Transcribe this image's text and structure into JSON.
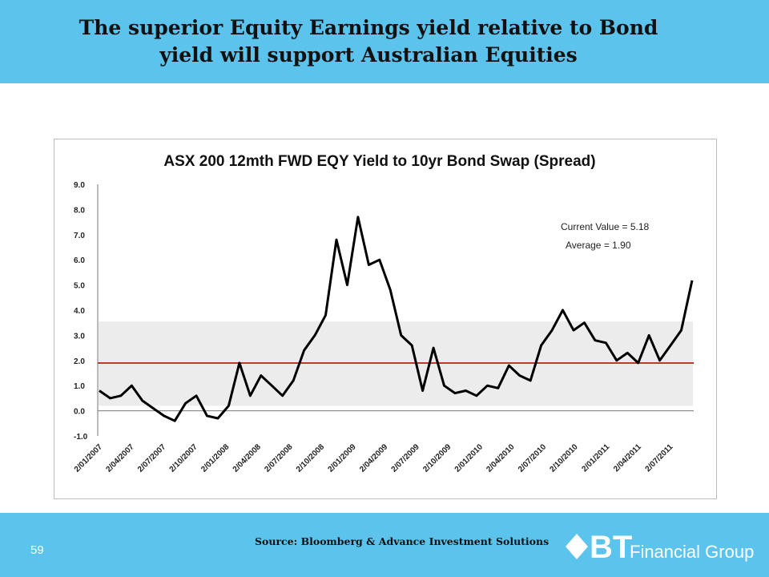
{
  "header": {
    "title_line1": "The superior Equity Earnings yield relative to Bond",
    "title_line2": "yield will support Australian Equities"
  },
  "footer": {
    "page_number": "59",
    "source": "Source: Bloomberg & Advance Investment Solutions",
    "logo_text": "Financial Group",
    "logo_mark": "BT"
  },
  "colors": {
    "band": "#5bc3ec",
    "average_line": "#c0392b",
    "series": "#000000",
    "shaded_band": "#d9d9d9"
  },
  "chart_data": {
    "type": "line",
    "title": "ASX 200 12mth FWD EQY Yield to 10yr Bond Swap (Spread)",
    "ylim": [
      -1.0,
      9.0
    ],
    "yticks": [
      "9.0",
      "8.0",
      "7.0",
      "6.0",
      "5.0",
      "4.0",
      "3.0",
      "2.0",
      "1.0",
      "0.0",
      "-1.0"
    ],
    "xticks": [
      "2/01/2007",
      "2/04/2007",
      "2/07/2007",
      "2/10/2007",
      "2/01/2008",
      "2/04/2008",
      "2/07/2008",
      "2/10/2008",
      "2/01/2009",
      "2/04/2009",
      "2/07/2009",
      "2/10/2009",
      "2/01/2010",
      "2/04/2010",
      "2/07/2010",
      "2/10/2010",
      "2/01/2011",
      "2/04/2011",
      "2/07/2011"
    ],
    "annotations": [
      "Current Value = 5.18",
      "Average = 1.90"
    ],
    "average": 1.9,
    "band_range": [
      0.2,
      3.55
    ],
    "series": [
      {
        "x": [
          "2007-01",
          "2007-02",
          "2007-03",
          "2007-04",
          "2007-05",
          "2007-06",
          "2007-07",
          "2007-08",
          "2007-09",
          "2007-10",
          "2007-11",
          "2007-12",
          "2008-01",
          "2008-02",
          "2008-03",
          "2008-04",
          "2008-05",
          "2008-06",
          "2008-07",
          "2008-08",
          "2008-09",
          "2008-10",
          "2008-11",
          "2008-12",
          "2009-01",
          "2009-02",
          "2009-03",
          "2009-04",
          "2009-05",
          "2009-06",
          "2009-07",
          "2009-08",
          "2009-09",
          "2009-10",
          "2009-11",
          "2009-12",
          "2010-01",
          "2010-02",
          "2010-03",
          "2010-04",
          "2010-05",
          "2010-06",
          "2010-07",
          "2010-08",
          "2010-09",
          "2010-10",
          "2010-11",
          "2010-12",
          "2011-01",
          "2011-02",
          "2011-03",
          "2011-04",
          "2011-05",
          "2011-06",
          "2011-07",
          "2011-08"
        ],
        "y": [
          0.8,
          0.5,
          0.6,
          1.0,
          0.4,
          0.1,
          -0.2,
          -0.4,
          0.3,
          0.6,
          -0.2,
          -0.3,
          0.2,
          1.9,
          0.6,
          1.4,
          1.0,
          0.6,
          1.2,
          2.4,
          3.0,
          3.8,
          6.8,
          5.0,
          7.7,
          5.8,
          6.0,
          4.8,
          3.0,
          2.6,
          0.8,
          2.5,
          1.0,
          0.7,
          0.8,
          0.6,
          1.0,
          0.9,
          1.8,
          1.4,
          1.2,
          2.6,
          3.2,
          4.0,
          3.2,
          3.5,
          2.8,
          2.7,
          2.0,
          2.3,
          1.9,
          3.0,
          2.0,
          2.6,
          3.2,
          5.18
        ]
      }
    ]
  }
}
